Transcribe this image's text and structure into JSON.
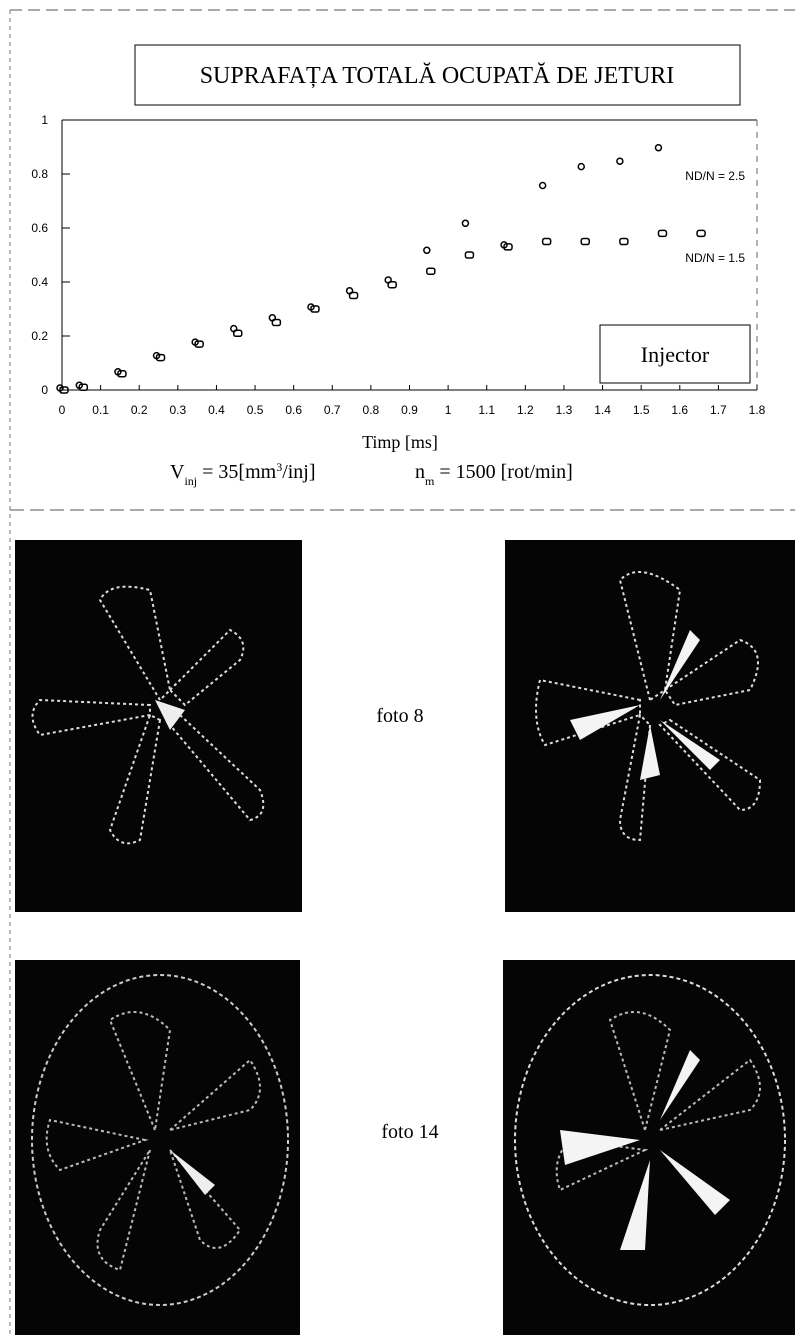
{
  "chart_data": {
    "type": "scatter",
    "title": "SUPRAFAȚA TOTALĂ OCUPATĂ DE JETURI",
    "x_label": "Timp [ms]",
    "conditions": [
      [
        {
          "text": "V"
        },
        {
          "text": "inj",
          "sub": true
        },
        {
          "text": " = 35[mm"
        },
        {
          "text": "3",
          "sup": true
        },
        {
          "text": "/inj]"
        }
      ],
      [
        {
          "text": "n"
        },
        {
          "text": "m",
          "sub": true
        },
        {
          "text": " = 1500 [rot/min]"
        }
      ]
    ],
    "annotation": "Injector",
    "x": [
      0,
      0.05,
      0.15,
      0.25,
      0.35,
      0.45,
      0.55,
      0.65,
      0.75,
      0.85,
      0.95,
      1.05,
      1.15,
      1.25,
      1.35,
      1.45,
      1.55,
      1.65
    ],
    "series": [
      {
        "name": "ND/N = 2.5",
        "color": "#000000",
        "marker": "circle",
        "values": [
          0,
          0.01,
          0.06,
          0.12,
          0.17,
          0.22,
          0.26,
          0.3,
          0.36,
          0.4,
          0.51,
          0.61,
          0.53,
          0.75,
          0.82,
          0.84,
          0.89,
          null
        ]
      },
      {
        "name": "ND/N = 1.5",
        "color": "#000000",
        "marker": "square",
        "values": [
          0,
          0.01,
          0.06,
          0.12,
          0.17,
          0.21,
          0.25,
          0.3,
          0.35,
          0.39,
          0.44,
          0.5,
          0.53,
          0.55,
          0.55,
          0.55,
          0.58,
          0.58
        ]
      }
    ],
    "xlim": [
      0,
      1.8
    ],
    "ylim": [
      0,
      1
    ],
    "xticks": [
      0,
      0.1,
      0.2,
      0.3,
      0.4,
      0.5,
      0.6,
      0.7,
      0.8,
      0.9,
      1,
      1.1,
      1.2,
      1.3,
      1.4,
      1.5,
      1.6,
      1.7,
      1.8
    ],
    "yticks": [
      0,
      0.2,
      0.4,
      0.6,
      0.8,
      1
    ]
  },
  "photos": {
    "captions": [
      "foto 8",
      "foto 14"
    ]
  }
}
